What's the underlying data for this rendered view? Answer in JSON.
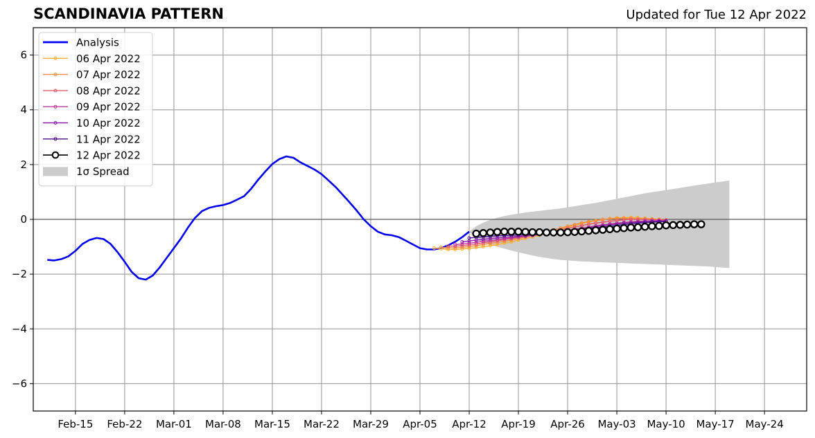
{
  "chart_data": {
    "type": "line",
    "title": "SCANDINAVIA PATTERN",
    "subtitle": "Updated for Tue 12 Apr 2022",
    "xlabel": "",
    "ylabel": "",
    "xlim": [
      "2022-02-09",
      "2022-05-30"
    ],
    "ylim": [
      -7,
      7
    ],
    "grid": true,
    "legend_position": "top-left",
    "x_ticks": [
      "2022-02-15",
      "2022-02-22",
      "2022-03-01",
      "2022-03-08",
      "2022-03-15",
      "2022-03-22",
      "2022-03-29",
      "2022-04-05",
      "2022-04-12",
      "2022-04-19",
      "2022-04-26",
      "2022-05-03",
      "2022-05-10",
      "2022-05-17",
      "2022-05-24"
    ],
    "x_tick_labels": [
      "Feb-15",
      "Feb-22",
      "Mar-01",
      "Mar-08",
      "Mar-15",
      "Mar-22",
      "Mar-29",
      "Apr-05",
      "Apr-12",
      "Apr-19",
      "Apr-26",
      "May-03",
      "May-10",
      "May-17",
      "May-24"
    ],
    "y_ticks": [
      -6,
      -4,
      -2,
      0,
      2,
      4,
      6
    ],
    "y_tick_labels": [
      "−6",
      "−4",
      "−2",
      "0",
      "2",
      "4",
      "6"
    ],
    "series": [
      {
        "name": "Analysis",
        "color": "#0000ee",
        "style": "analysis",
        "start": "2022-02-11",
        "values": [
          -1.48,
          -1.5,
          -1.45,
          -1.35,
          -1.15,
          -0.9,
          -0.75,
          -0.68,
          -0.72,
          -0.9,
          -1.2,
          -1.55,
          -1.92,
          -2.15,
          -2.2,
          -2.05,
          -1.75,
          -1.4,
          -1.05,
          -0.7,
          -0.3,
          0.05,
          0.3,
          0.42,
          0.48,
          0.52,
          0.6,
          0.72,
          0.85,
          1.12,
          1.45,
          1.75,
          2.02,
          2.2,
          2.3,
          2.25,
          2.08,
          1.95,
          1.82,
          1.65,
          1.42,
          1.18,
          0.9,
          0.62,
          0.32,
          0.0,
          -0.25,
          -0.45,
          -0.55,
          -0.58,
          -0.65,
          -0.78,
          -0.92,
          -1.05,
          -1.1,
          -1.1,
          -1.05,
          -0.95,
          -0.82,
          -0.65,
          -0.45
        ]
      },
      {
        "name": "06 Apr 2022",
        "color": "#fcae31",
        "style": "forecast",
        "start": "2022-04-07",
        "values": [
          -1.05,
          -1.07,
          -1.1,
          -1.1,
          -1.08,
          -1.06,
          -1.03,
          -1.0,
          -0.96,
          -0.92,
          -0.87,
          -0.82,
          -0.76,
          -0.7,
          -0.64,
          -0.58,
          -0.5,
          -0.43,
          -0.36,
          -0.29,
          -0.22,
          -0.16,
          -0.1,
          -0.05,
          -0.01,
          0.03,
          0.05,
          0.06,
          0.07,
          0.06,
          0.04,
          0.02,
          0.0,
          -0.02
        ]
      },
      {
        "name": "07 Apr 2022",
        "color": "#f48a3c",
        "style": "forecast",
        "start": "2022-04-08",
        "values": [
          -1.02,
          -1.04,
          -1.04,
          -1.02,
          -0.99,
          -0.96,
          -0.92,
          -0.88,
          -0.84,
          -0.8,
          -0.75,
          -0.7,
          -0.65,
          -0.59,
          -0.53,
          -0.46,
          -0.39,
          -0.32,
          -0.25,
          -0.19,
          -0.13,
          -0.08,
          -0.04,
          0.0,
          0.02,
          0.03,
          0.04,
          0.03,
          0.02,
          0.01,
          0.0,
          -0.01,
          -0.02
        ]
      },
      {
        "name": "08 Apr 2022",
        "color": "#e3586b",
        "style": "forecast",
        "start": "2022-04-09",
        "values": [
          -0.98,
          -0.98,
          -0.96,
          -0.93,
          -0.9,
          -0.86,
          -0.82,
          -0.78,
          -0.74,
          -0.7,
          -0.66,
          -0.62,
          -0.58,
          -0.53,
          -0.48,
          -0.43,
          -0.38,
          -0.33,
          -0.28,
          -0.23,
          -0.18,
          -0.14,
          -0.1,
          -0.07,
          -0.04,
          -0.02,
          0.0,
          0.0,
          0.0,
          -0.01,
          -0.02,
          -0.03
        ]
      },
      {
        "name": "09 Apr 2022",
        "color": "#c2399a",
        "style": "forecast",
        "start": "2022-04-10",
        "values": [
          -0.92,
          -0.9,
          -0.87,
          -0.84,
          -0.8,
          -0.77,
          -0.74,
          -0.71,
          -0.68,
          -0.65,
          -0.62,
          -0.59,
          -0.56,
          -0.52,
          -0.48,
          -0.44,
          -0.4,
          -0.36,
          -0.32,
          -0.28,
          -0.24,
          -0.2,
          -0.17,
          -0.14,
          -0.11,
          -0.09,
          -0.07,
          -0.06,
          -0.05,
          -0.05,
          -0.05
        ]
      },
      {
        "name": "10 Apr 2022",
        "color": "#8e1ea8",
        "style": "forecast",
        "start": "2022-04-11",
        "values": [
          -0.82,
          -0.79,
          -0.76,
          -0.73,
          -0.7,
          -0.68,
          -0.66,
          -0.64,
          -0.62,
          -0.6,
          -0.58,
          -0.55,
          -0.52,
          -0.49,
          -0.46,
          -0.43,
          -0.39,
          -0.35,
          -0.31,
          -0.27,
          -0.23,
          -0.2,
          -0.17,
          -0.14,
          -0.12,
          -0.1,
          -0.08,
          -0.07,
          -0.06,
          -0.06
        ]
      },
      {
        "name": "11 Apr 2022",
        "color": "#4a0d8f",
        "style": "forecast",
        "start": "2022-04-12",
        "values": [
          -0.68,
          -0.66,
          -0.64,
          -0.62,
          -0.6,
          -0.59,
          -0.58,
          -0.57,
          -0.56,
          -0.55,
          -0.53,
          -0.51,
          -0.49,
          -0.46,
          -0.43,
          -0.4,
          -0.37,
          -0.34,
          -0.31,
          -0.28,
          -0.25,
          -0.22,
          -0.19,
          -0.16,
          -0.14,
          -0.12,
          -0.1,
          -0.09,
          -0.08
        ]
      },
      {
        "name": "12 Apr 2022",
        "color": "#000000",
        "style": "latest",
        "start": "2022-04-13",
        "values": [
          -0.52,
          -0.5,
          -0.48,
          -0.46,
          -0.45,
          -0.45,
          -0.45,
          -0.46,
          -0.47,
          -0.47,
          -0.48,
          -0.48,
          -0.48,
          -0.47,
          -0.46,
          -0.44,
          -0.42,
          -0.4,
          -0.38,
          -0.36,
          -0.34,
          -0.32,
          -0.3,
          -0.29,
          -0.27,
          -0.25,
          -0.24,
          -0.22,
          -0.21,
          -0.2,
          -0.19,
          -0.18,
          -0.18
        ]
      }
    ],
    "spread": {
      "name": "1σ Spread",
      "color": "#cccccc",
      "start": "2022-04-12",
      "upper": [
        -0.45,
        -0.25,
        -0.12,
        -0.02,
        0.06,
        0.12,
        0.17,
        0.21,
        0.25,
        0.28,
        0.31,
        0.34,
        0.37,
        0.4,
        0.44,
        0.48,
        0.52,
        0.56,
        0.6,
        0.65,
        0.7,
        0.75,
        0.8,
        0.85,
        0.9,
        0.95,
        0.99,
        1.03,
        1.07,
        1.11,
        1.15,
        1.19,
        1.23,
        1.27,
        1.31,
        1.35,
        1.38,
        1.42
      ],
      "lower": [
        -0.45,
        -0.72,
        -0.85,
        -0.93,
        -1.0,
        -1.07,
        -1.14,
        -1.2,
        -1.26,
        -1.32,
        -1.37,
        -1.41,
        -1.45,
        -1.48,
        -1.5,
        -1.52,
        -1.54,
        -1.55,
        -1.56,
        -1.57,
        -1.58,
        -1.59,
        -1.6,
        -1.61,
        -1.62,
        -1.63,
        -1.64,
        -1.65,
        -1.66,
        -1.67,
        -1.68,
        -1.69,
        -1.7,
        -1.71,
        -1.72,
        -1.74,
        -1.76,
        -1.78
      ]
    }
  }
}
